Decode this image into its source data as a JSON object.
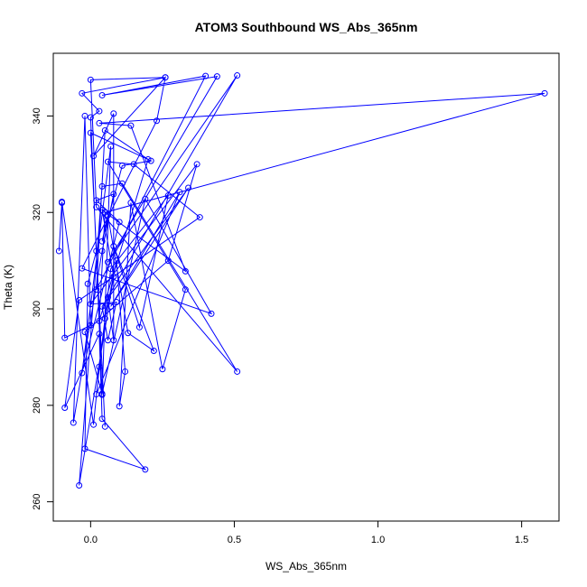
{
  "chart_data": {
    "type": "line",
    "title": "ATOM3 Southbound WS_Abs_365nm",
    "xlabel": "WS_Abs_365nm",
    "ylabel": "Theta (K)",
    "xlim": [
      -0.13,
      1.63
    ],
    "ylim": [
      256,
      353
    ],
    "xticks": [
      0.0,
      0.5,
      1.0,
      1.5
    ],
    "xtick_labels": [
      "0.0",
      "0.5",
      "1.0",
      "1.5"
    ],
    "yticks": [
      260,
      280,
      300,
      320,
      340
    ],
    "ytick_labels": [
      "260",
      "280",
      "300",
      "320",
      "340"
    ],
    "grid": false,
    "legend": "none",
    "series": [
      {
        "color": "#0000ff",
        "marker": "open-circle",
        "line": true,
        "points": [
          [
            -0.11,
            312.0
          ],
          [
            -0.1,
            322.2
          ],
          [
            0.01,
            276.0
          ],
          [
            0.03,
            288.0
          ],
          [
            0.05,
            298.0
          ],
          [
            0.09,
            310.0
          ],
          [
            0.12,
            287.0
          ],
          [
            0.1,
            279.8
          ],
          [
            0.14,
            322.0
          ],
          [
            0.25,
            287.5
          ],
          [
            0.33,
            304.0
          ],
          [
            0.06,
            330.5
          ],
          [
            0.15,
            330.0
          ],
          [
            0.38,
            319.0
          ],
          [
            -0.04,
            301.8
          ],
          [
            -0.09,
            279.5
          ],
          [
            0.03,
            294.8
          ],
          [
            0.04,
            277.2
          ],
          [
            0.19,
            266.7
          ],
          [
            -0.02,
            271.0
          ],
          [
            -0.01,
            305.2
          ],
          [
            0.02,
            312.0
          ],
          [
            0.05,
            275.6
          ],
          [
            0.0,
            336.5
          ],
          [
            0.21,
            330.7
          ],
          [
            0.11,
            329.7
          ],
          [
            0.04,
            314.0
          ],
          [
            0.06,
            319.4
          ],
          [
            0.13,
            295.0
          ],
          [
            0.22,
            291.3
          ],
          [
            0.08,
            313.0
          ],
          [
            0.17,
            296.2
          ],
          [
            0.27,
            323.5
          ],
          [
            0.07,
            308.3
          ],
          [
            0.02,
            282.3
          ],
          [
            0.31,
            324.2
          ],
          [
            0.07,
            300.5
          ],
          [
            0.34,
            325.1
          ],
          [
            0.04,
            300.5
          ],
          [
            0.06,
            293.5
          ],
          [
            0.09,
            301.4
          ],
          [
            0.0,
            301.0
          ],
          [
            0.37,
            330.0
          ],
          [
            0.27,
            310.0
          ],
          [
            -0.02,
            295.2
          ],
          [
            0.04,
            282.4
          ],
          [
            0.19,
            322.8
          ],
          [
            0.42,
            299.0
          ],
          [
            -0.03,
            308.4
          ],
          [
            0.23,
            339.0
          ],
          [
            0.26,
            348.0
          ],
          [
            0.01,
            331.7
          ],
          [
            0.08,
            340.5
          ],
          [
            0.08,
            293.5
          ],
          [
            0.06,
            302.4
          ],
          [
            0.51,
            348.4
          ],
          [
            0.06,
            309.7
          ],
          [
            0.44,
            348.2
          ],
          [
            0.04,
            344.3
          ],
          [
            0.4,
            348.3
          ],
          [
            0.02,
            304.0
          ],
          [
            0.05,
            337.0
          ],
          [
            0.2,
            331.0
          ],
          [
            0.03,
            297.5
          ],
          [
            0.05,
            320.0
          ],
          [
            1.58,
            344.7
          ],
          [
            0.03,
            338.5
          ],
          [
            0.14,
            338.0
          ],
          [
            0.33,
            307.8
          ],
          [
            0.04,
            320.5
          ],
          [
            0.08,
            306.7
          ],
          [
            -0.04,
            263.4
          ],
          [
            0.04,
            325.4
          ],
          [
            0.11,
            326.0
          ],
          [
            0.51,
            287.0
          ],
          [
            0.02,
            321.1
          ],
          [
            0.0,
            347.5
          ],
          [
            0.26,
            348.0
          ],
          [
            -0.03,
            344.7
          ],
          [
            0.03,
            341.0
          ],
          [
            0.0,
            339.7
          ],
          [
            0.04,
            282.2
          ],
          [
            0.07,
            333.7
          ],
          [
            -0.03,
            286.7
          ],
          [
            0.1,
            318.0
          ],
          [
            0.02,
            322.5
          ],
          [
            0.08,
            323.8
          ],
          [
            0.04,
            312.0
          ],
          [
            -0.06,
            276.4
          ],
          [
            -0.02,
            340.0
          ],
          [
            0.0,
            296.6
          ],
          [
            -0.09,
            294.0
          ],
          [
            -0.1,
            322.0
          ]
        ]
      }
    ]
  }
}
